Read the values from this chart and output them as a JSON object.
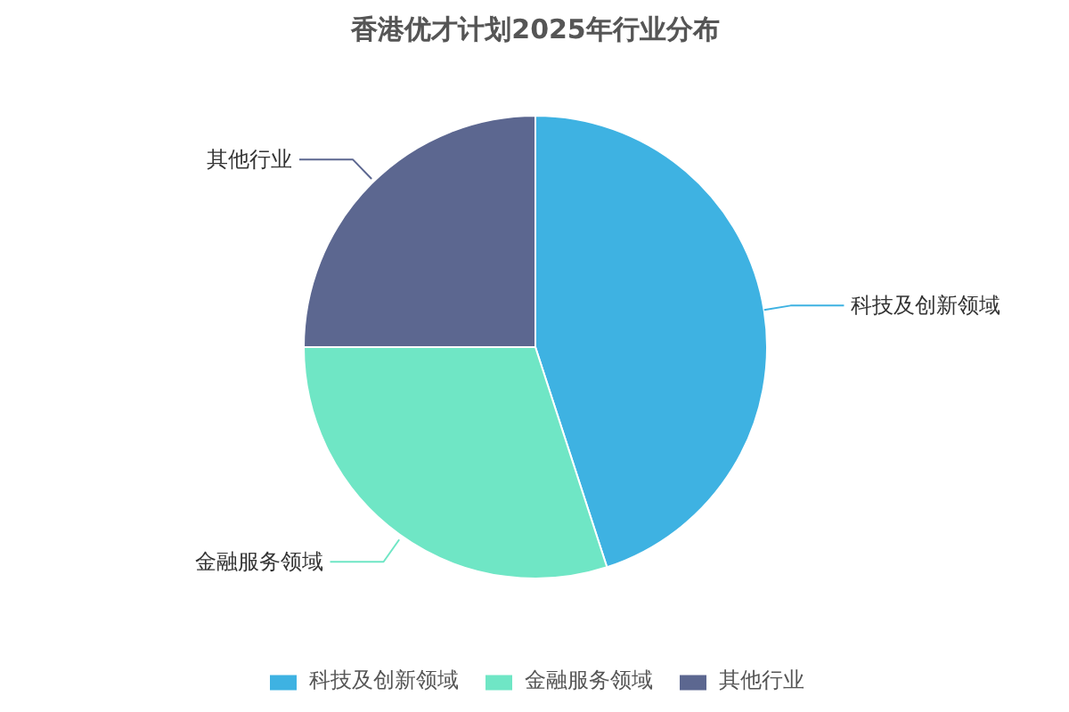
{
  "chart_data": {
    "type": "pie",
    "title": "香港优才计划2025年行业分布",
    "categories": [
      "科技及创新领域",
      "金融服务领域",
      "其他行业"
    ],
    "values": [
      45,
      30,
      25
    ],
    "colors": [
      "#3eb2e2",
      "#6fe6c5",
      "#5c6790"
    ],
    "legend": "bottom"
  }
}
